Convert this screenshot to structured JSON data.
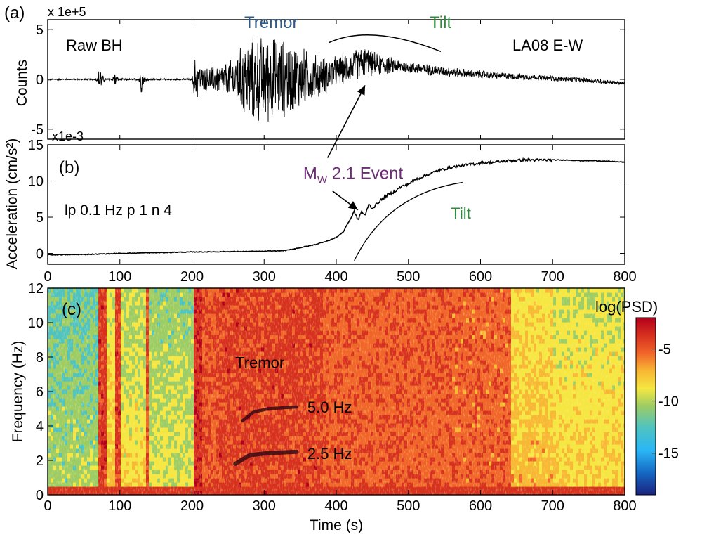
{
  "colors": {
    "trace": "#000000",
    "tremor_label": "#2f5b86",
    "tilt_label": "#2e8b3e",
    "event_label": "#6b2d73",
    "colormap": [
      "#1a237e",
      "#1565c0",
      "#29b6f6",
      "#4fc3c0",
      "#9ccc65",
      "#f5e642",
      "#f7b733",
      "#f1652a",
      "#d7301f",
      "#b3001b"
    ]
  },
  "chart_data": [
    {
      "panel_label": "(a)",
      "type": "line",
      "station_label": "LA08 E-W",
      "trace_label": "Raw BH",
      "ylabel": "Counts",
      "y_multiplier": "x 1e+5",
      "ylim": [
        -6,
        6
      ],
      "yticks": [
        -5,
        0,
        5
      ],
      "ytick_labels": [
        "-5",
        "0",
        "5"
      ],
      "xlim": [
        0,
        800
      ],
      "annotations": [
        {
          "text": "Tremor",
          "x": 300,
          "y": 5.0,
          "color": "tremor"
        },
        {
          "text": "Tilt",
          "x": 530,
          "y": 5.0,
          "color": "tilt"
        }
      ],
      "envelope": {
        "x": [
          0,
          65,
          70,
          72,
          75,
          80,
          90,
          92,
          95,
          100,
          125,
          130,
          133,
          140,
          150,
          200,
          205,
          208,
          215,
          230,
          245,
          255,
          265,
          275,
          285,
          300,
          320,
          340,
          360,
          380,
          400,
          420,
          440,
          450,
          480,
          500,
          550,
          600,
          650,
          700,
          750,
          800
        ],
        "amp": [
          0.08,
          0.08,
          0.4,
          2.3,
          0.6,
          0.15,
          0.1,
          1.2,
          0.4,
          0.1,
          0.1,
          1.6,
          0.5,
          0.12,
          0.1,
          0.1,
          3.2,
          2.0,
          1.2,
          1.5,
          1.9,
          2.2,
          3.2,
          4.5,
          4.8,
          4.8,
          4.6,
          4.0,
          3.0,
          2.2,
          1.7,
          1.7,
          1.8,
          1.4,
          0.9,
          0.7,
          0.55,
          0.45,
          0.35,
          0.3,
          0.28,
          0.2
        ]
      },
      "baseline": {
        "x": [
          0,
          200,
          300,
          380,
          420,
          440,
          450,
          500,
          550,
          600,
          650,
          700,
          750,
          800
        ],
        "y": [
          0,
          0,
          0,
          0.3,
          1.3,
          1.8,
          1.6,
          1.2,
          0.8,
          0.5,
          0.3,
          0.1,
          -0.1,
          -0.4
        ]
      }
    },
    {
      "panel_label": "(b)",
      "type": "line",
      "filter_label": "lp 0.1 Hz p 1 n 4",
      "ylabel": "Acceleration (cm/s²)",
      "y_multiplier": "x1e-3",
      "ylim": [
        -1.5,
        15
      ],
      "yticks": [
        0,
        5,
        10,
        15
      ],
      "ytick_labels": [
        "0",
        "5",
        "10",
        "15"
      ],
      "xlim": [
        0,
        800
      ],
      "xticks": [
        0,
        100,
        200,
        300,
        400,
        500,
        600,
        700,
        800
      ],
      "xtick_labels": [
        "0",
        "100",
        "200",
        "300",
        "400",
        "500",
        "600",
        "700",
        "800"
      ],
      "annotations": [
        {
          "text_main": "M",
          "text_sub": "W",
          "text_rest": " 2.1 Event",
          "x": 365,
          "y": 10.5,
          "color": "event"
        },
        {
          "text": "Tilt",
          "x": 520,
          "y": 4.8,
          "color": "tilt"
        }
      ],
      "series": [
        {
          "x": [
            0,
            50,
            100,
            150,
            200,
            250,
            300,
            330,
            350,
            370,
            390,
            400,
            410,
            415,
            420,
            425,
            430,
            435,
            440,
            445,
            450,
            460,
            470,
            480,
            490,
            500,
            510,
            520,
            530,
            540,
            560,
            580,
            600,
            620,
            640,
            660,
            680,
            700,
            720,
            740,
            760,
            780,
            800
          ],
          "y": [
            -0.2,
            -0.15,
            0,
            0.1,
            0.2,
            0.25,
            0.3,
            0.4,
            0.8,
            1.2,
            1.8,
            2.2,
            3.0,
            4.0,
            4.8,
            5.8,
            4.6,
            5.8,
            5.2,
            6.8,
            6.2,
            7.2,
            8.0,
            8.5,
            9.2,
            9.6,
            10.2,
            10.6,
            11.0,
            11.4,
            11.9,
            12.2,
            12.5,
            12.6,
            12.8,
            12.9,
            12.9,
            12.9,
            12.9,
            12.8,
            12.8,
            12.7,
            12.6
          ]
        }
      ]
    },
    {
      "panel_label": "(c)",
      "type": "heatmap",
      "colorbar_label": "log(PSD)",
      "xlabel": "Time (s)",
      "ylabel": "Frequency (Hz)",
      "xlim": [
        0,
        800
      ],
      "ylim": [
        0,
        12
      ],
      "xticks": [
        0,
        100,
        200,
        300,
        400,
        500,
        600,
        700,
        800
      ],
      "xtick_labels": [
        "0",
        "100",
        "200",
        "300",
        "400",
        "500",
        "600",
        "700",
        "800"
      ],
      "yticks": [
        0,
        2,
        4,
        6,
        8,
        10,
        12
      ],
      "ytick_labels": [
        "0",
        "2",
        "4",
        "6",
        "8",
        "10",
        "12"
      ],
      "clim": [
        -19,
        -2
      ],
      "colorbar_ticks": [
        -5,
        -10,
        -15
      ],
      "colorbar_tick_labels": [
        "-5",
        "-10",
        "-15"
      ],
      "annotations": [
        {
          "text": "Tremor",
          "x": 260,
          "y": 7.7
        },
        {
          "text": "5.0 Hz",
          "x": 360,
          "y": 5.1
        },
        {
          "text": "2.5 Hz",
          "x": 360,
          "y": 2.4
        }
      ],
      "harmonics": [
        {
          "x": [
            260,
            280,
            300,
            320,
            345
          ],
          "y": [
            1.8,
            2.3,
            2.4,
            2.45,
            2.5
          ]
        },
        {
          "x": [
            270,
            285,
            305,
            325,
            345
          ],
          "y": [
            4.3,
            4.8,
            5.0,
            5.05,
            5.1
          ]
        }
      ],
      "time_segments": [
        {
          "x0": 0,
          "x1": 70,
          "level": -11
        },
        {
          "x0": 70,
          "x1": 80,
          "level": -4
        },
        {
          "x0": 80,
          "x1": 93,
          "level": -8
        },
        {
          "x0": 93,
          "x1": 100,
          "level": -4
        },
        {
          "x0": 100,
          "x1": 133,
          "level": -9
        },
        {
          "x0": 133,
          "x1": 140,
          "level": -4.5
        },
        {
          "x0": 140,
          "x1": 200,
          "level": -10
        },
        {
          "x0": 200,
          "x1": 212,
          "level": -3.5
        },
        {
          "x0": 212,
          "x1": 230,
          "level": -5
        },
        {
          "x0": 230,
          "x1": 380,
          "level": -4.2
        },
        {
          "x0": 380,
          "x1": 560,
          "level": -5.2
        },
        {
          "x0": 560,
          "x1": 640,
          "level": -5.5
        },
        {
          "x0": 640,
          "x1": 700,
          "level": -7.5
        },
        {
          "x0": 700,
          "x1": 800,
          "level": -8.5
        }
      ]
    }
  ]
}
